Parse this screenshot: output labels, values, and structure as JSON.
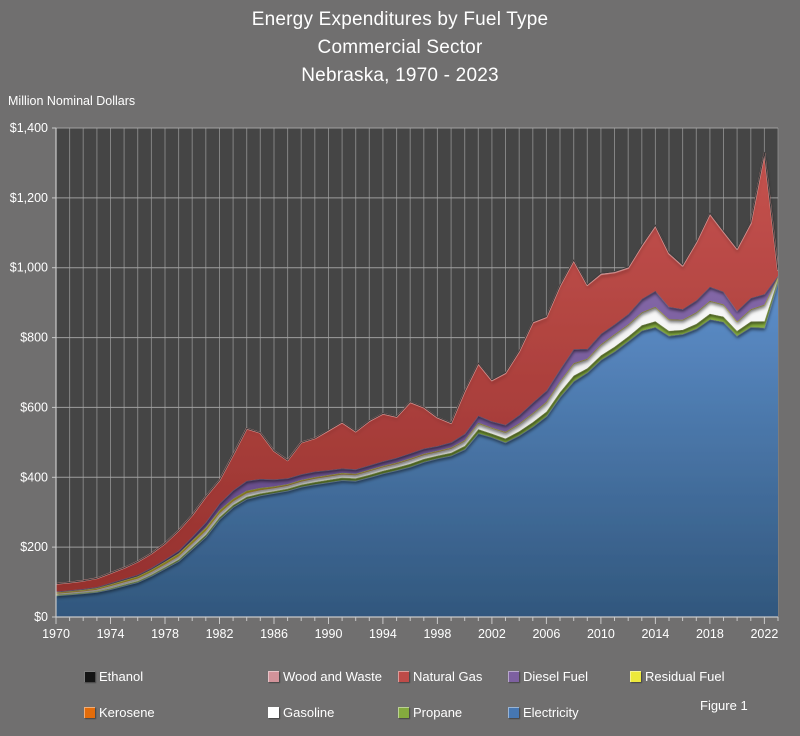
{
  "title": {
    "line1": "Energy Expenditures by Fuel Type",
    "line2": "Commercial Sector",
    "line3": "Nebraska, 1970 - 2023"
  },
  "axis": {
    "y_title": "Million Nominal Dollars"
  },
  "figure_label": "Figure 1",
  "colors": {
    "page_bg": "#706F6F",
    "plot_bg": "#454545",
    "gridline_v": "#8F8F8F",
    "gridline_h": "#A8A8A8",
    "axis_line": "#C9C9C9",
    "text": "#FFFFFF"
  },
  "legend": {
    "items": [
      {
        "label": "Ethanol",
        "color": "#141414"
      },
      {
        "label": "Wood and Waste",
        "color": "#D2939A"
      },
      {
        "label": "Natural Gas",
        "color": "#BE4B48"
      },
      {
        "label": "Diesel Fuel",
        "color": "#7D60A0"
      },
      {
        "label": "Residual Fuel",
        "color": "#EDE93B"
      },
      {
        "label": "Kerosene",
        "color": "#E36C0A"
      },
      {
        "label": "Gasoline",
        "color": "#FFFFFF"
      },
      {
        "label": "Propane",
        "color": "#84AA3E"
      },
      {
        "label": "Electricity",
        "color": "#4677B2"
      }
    ]
  },
  "chart_data": {
    "type": "area",
    "stacked": true,
    "title": "Energy Expenditures by Fuel Type, Commercial Sector, Nebraska, 1970 - 2023",
    "ylabel": "Million Nominal Dollars",
    "ylim": [
      0,
      1400
    ],
    "y_tick_interval": 200,
    "y_tick_labels": [
      "$0",
      "$200",
      "$400",
      "$600",
      "$800",
      "$1,000",
      "$1,200",
      "$1,400"
    ],
    "x_tick_labels": [
      "1970",
      "1974",
      "1978",
      "1982",
      "1986",
      "1990",
      "1994",
      "1998",
      "2002",
      "2006",
      "2010",
      "2014",
      "2018",
      "2022"
    ],
    "years": [
      1970,
      1971,
      1972,
      1973,
      1974,
      1975,
      1976,
      1977,
      1978,
      1979,
      1980,
      1981,
      1982,
      1983,
      1984,
      1985,
      1986,
      1987,
      1988,
      1989,
      1990,
      1991,
      1992,
      1993,
      1994,
      1995,
      1996,
      1997,
      1998,
      1999,
      2000,
      2001,
      2002,
      2003,
      2004,
      2005,
      2006,
      2007,
      2008,
      2009,
      2010,
      2011,
      2012,
      2013,
      2014,
      2015,
      2016,
      2017,
      2018,
      2019,
      2020,
      2021,
      2022,
      2023
    ],
    "series": [
      {
        "name": "Electricity",
        "color_light": "#5E8FCB",
        "color_dark": "#31577D",
        "edge": "#9DBFE4",
        "values": [
          62,
          65,
          68,
          72,
          80,
          90,
          100,
          118,
          139,
          160,
          195,
          230,
          280,
          315,
          338,
          348,
          355,
          362,
          373,
          380,
          386,
          392,
          390,
          400,
          411,
          420,
          430,
          444,
          454,
          462,
          480,
          526,
          515,
          500,
          520,
          545,
          575,
          630,
          675,
          700,
          736,
          760,
          790,
          820,
          830,
          805,
          810,
          825,
          852,
          845,
          805,
          830,
          828,
          960
        ]
      },
      {
        "name": "Propane",
        "color_light": "#8CB443",
        "color_dark": "#6B8F2E",
        "edge": "#C4E17A",
        "values": [
          1.5,
          1.6,
          1.8,
          2,
          2.5,
          3,
          3.2,
          3.5,
          4,
          4.5,
          5,
          6,
          6,
          6,
          6.5,
          6,
          5.5,
          5.5,
          6,
          6.5,
          7,
          7,
          7,
          7.5,
          7.5,
          8,
          9,
          8.5,
          8,
          8.5,
          10,
          12,
          10,
          11,
          12,
          13,
          13,
          14,
          16,
          12,
          13,
          14,
          13,
          15,
          17,
          14,
          12,
          14,
          16,
          15,
          14,
          16,
          19,
          7
        ]
      },
      {
        "name": "Gasoline",
        "color_light": "#FAFAFA",
        "color_dark": "#D9D9D9",
        "edge": "#FFFFFF",
        "values": [
          4,
          4.2,
          4.5,
          5,
          6.5,
          7,
          7.5,
          8,
          8.5,
          10,
          11,
          12,
          12,
          11,
          11,
          10,
          9,
          9,
          9.5,
          10,
          10,
          10,
          10,
          10.5,
          11,
          11,
          12,
          12,
          11,
          12,
          14,
          16,
          15,
          17,
          20,
          24,
          26,
          29,
          34,
          26,
          30,
          34,
          33,
          36,
          40,
          32,
          28,
          32,
          36,
          34,
          26,
          34,
          46,
          6
        ]
      },
      {
        "name": "Kerosene",
        "color_light": "#E36C0A",
        "color_dark": "#B85605",
        "edge": "#F5A050",
        "values": [
          0.5,
          0.5,
          0.5,
          0.5,
          0.5,
          0.5,
          0.5,
          0.5,
          0.5,
          0.5,
          0.5,
          0.5,
          0.5,
          0.5,
          0.5,
          0.5,
          0.5,
          0.5,
          0.5,
          0.5,
          0.5,
          0.5,
          0.5,
          0.5,
          0.5,
          0.5,
          0.5,
          0.5,
          0.5,
          0.5,
          0.5,
          0.5,
          0.5,
          0.5,
          0.5,
          0.5,
          0.5,
          0.5,
          0.5,
          0.5,
          0.5,
          0.5,
          0.5,
          0.5,
          0.5,
          0.5,
          0.5,
          0.5,
          0.5,
          0.5,
          0.4,
          0.4,
          0.4,
          0.4
        ]
      },
      {
        "name": "Residual Fuel",
        "color_light": "#EDE93B",
        "color_dark": "#C8C41E",
        "edge": "#FBF87D",
        "values": [
          3,
          3,
          3.2,
          3.5,
          4.5,
          5,
          5.5,
          6,
          6.5,
          7,
          7.5,
          8,
          7.5,
          6.5,
          6,
          5,
          4,
          3.5,
          3.5,
          3.5,
          3,
          3,
          2.8,
          2.8,
          2.6,
          2.5,
          2.5,
          2.4,
          2.2,
          2.2,
          2,
          2,
          1.8,
          1.8,
          1.8,
          1.6,
          1.6,
          1.5,
          1.5,
          1.2,
          1.2,
          1.2,
          1.1,
          1.1,
          1,
          1,
          1,
          1,
          1,
          1,
          1,
          1,
          1,
          0.5
        ]
      },
      {
        "name": "Diesel Fuel",
        "color_light": "#8468A8",
        "color_dark": "#5E4480",
        "edge": "#AE97CC",
        "values": [
          2,
          2.2,
          2.4,
          2.8,
          3.5,
          4,
          4.5,
          5,
          6,
          8,
          11,
          15,
          19,
          24,
          28,
          26,
          20,
          17,
          16,
          16,
          14,
          13,
          12.5,
          13,
          13.5,
          14,
          15,
          15,
          14,
          15,
          18,
          20,
          18,
          20,
          24,
          30,
          32,
          34,
          40,
          28,
          30,
          28,
          30,
          38,
          45,
          36,
          30,
          34,
          40,
          36,
          30,
          32,
          30,
          3
        ]
      },
      {
        "name": "Natural Gas",
        "color_light": "#C5524E",
        "color_dark": "#96312E",
        "edge": "#DC8F8B",
        "values": [
          21.7,
          22.2,
          23.3,
          24.9,
          28.2,
          31.2,
          37.5,
          40.7,
          46.2,
          57.7,
          61.5,
          73,
          66.5,
          101.5,
          149.5,
          132,
          81.5,
          51,
          91,
          95,
          113.3,
          131.3,
          108,
          126.5,
          135.7,
          116.8,
          145.8,
          117.4,
          81.1,
          54.6,
          121.5,
          148.5,
          116.7,
          147.7,
          181.7,
          228.9,
          209.9,
          239,
          253,
          182.3,
          170.5,
          148.5,
          131.6,
          151.6,
          185.7,
          151.7,
          123.7,
          165.7,
          207.7,
          170.7,
          176.6,
          213.6,
          402.6,
          13.6
        ]
      },
      {
        "name": "Wood and Waste",
        "color_light": "#D2939A",
        "color_dark": "#B87078",
        "edge": "#E5B3B8",
        "values": [
          0.3,
          0.3,
          0.3,
          0.3,
          0.3,
          0.3,
          0.3,
          0.3,
          0.3,
          0.3,
          0.5,
          0.5,
          0.5,
          0.5,
          0.5,
          0.5,
          0.5,
          0.5,
          0.5,
          0.5,
          1,
          1,
          1,
          1,
          1,
          1,
          1,
          1,
          1,
          1,
          1.5,
          1.5,
          1.5,
          1.5,
          1.5,
          1.5,
          1.5,
          1.5,
          1.5,
          1.5,
          2,
          2,
          2,
          2,
          2,
          2,
          2,
          2,
          2,
          2,
          2,
          2,
          2,
          1
        ]
      },
      {
        "name": "Ethanol",
        "color_light": "#141414",
        "color_dark": "#000000",
        "edge": "#3A3A3A",
        "values": [
          0,
          0,
          0,
          0,
          0,
          0,
          0,
          0,
          0,
          0,
          0,
          0,
          0,
          0,
          0,
          0,
          0,
          0,
          0,
          0,
          0.2,
          0.2,
          0.2,
          0.2,
          0.2,
          0.2,
          0.2,
          0.2,
          0.2,
          0.2,
          0.5,
          0.5,
          0.5,
          0.5,
          0.5,
          0.5,
          0.5,
          0.5,
          0.5,
          0.5,
          0.8,
          0.8,
          0.8,
          0.8,
          0.8,
          0.8,
          0.8,
          0.8,
          0.8,
          0.8,
          1,
          1,
          1,
          0.5
        ]
      }
    ]
  }
}
